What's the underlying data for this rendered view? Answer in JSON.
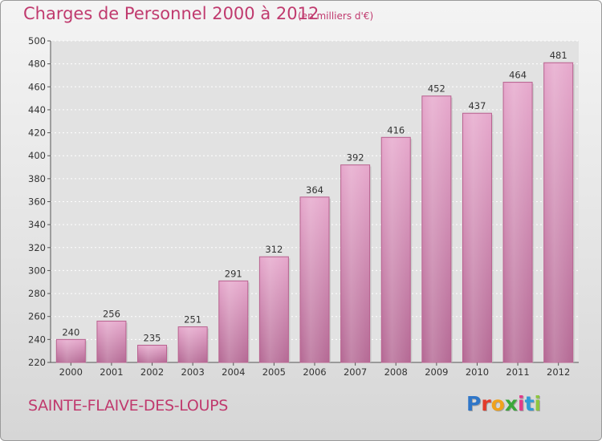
{
  "header": {
    "title": "Charges de Personnel 2000 à 2012",
    "subtitle": "(en milliers d'€)"
  },
  "footer": {
    "commune": "SAINTE-FLAIVE-DES-LOUPS",
    "logo_letters": [
      "P",
      "r",
      "o",
      "x",
      "i",
      "t",
      "i"
    ],
    "logo_colors": [
      "#2f76c8",
      "#e23a2a",
      "#f0a21c",
      "#3aa83a",
      "#e23a8a",
      "#2f9ad8",
      "#8dc63f"
    ]
  },
  "chart_data": {
    "type": "bar",
    "title": "Charges de Personnel 2000 à 2012",
    "subtitle": "(en milliers d'€)",
    "categories": [
      "2000",
      "2001",
      "2002",
      "2003",
      "2004",
      "2005",
      "2006",
      "2007",
      "2008",
      "2009",
      "2010",
      "2011",
      "2012"
    ],
    "values": [
      240,
      256,
      235,
      251,
      291,
      312,
      364,
      392,
      416,
      452,
      437,
      464,
      481
    ],
    "xlabel": "",
    "ylabel": "",
    "ylim": [
      220,
      500
    ],
    "yticks": [
      220,
      240,
      260,
      280,
      300,
      320,
      340,
      360,
      380,
      400,
      420,
      440,
      460,
      480,
      500
    ],
    "grid": true,
    "bar_color": "#e0a2c6",
    "bar_edge": "#b8628f"
  }
}
